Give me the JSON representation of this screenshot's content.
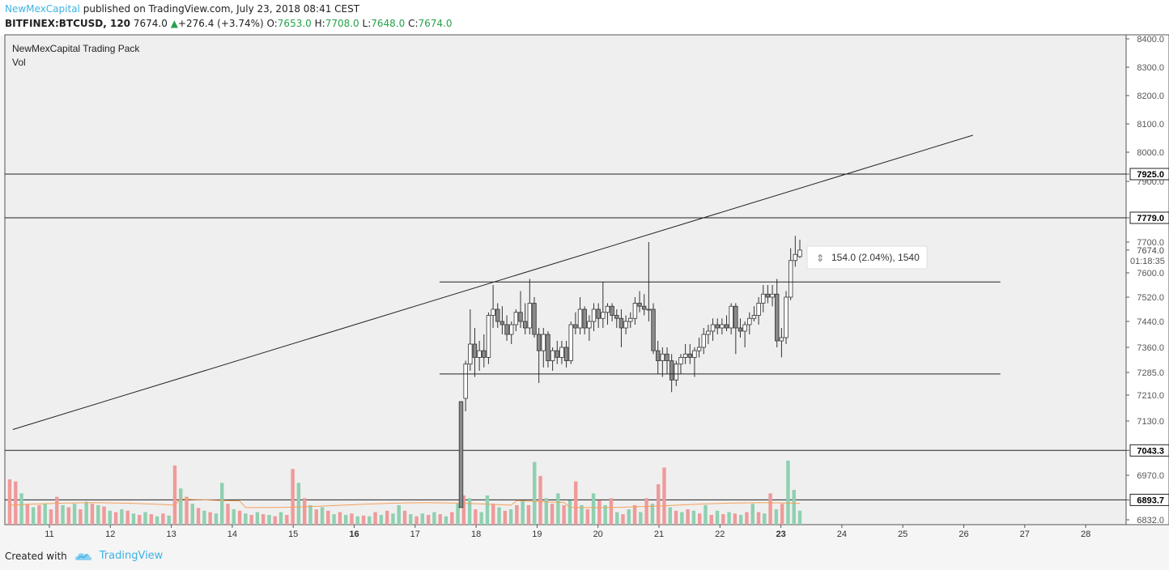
{
  "header": {
    "author": "NewMexCapital",
    "published_text": "published on TradingView.com, July 23, 2018 08:41 CEST",
    "symbol": "BITFINEX:BTCUSD, 120",
    "last_price": "7674.0",
    "change_arrow": "▲",
    "change": "+276.4 (+3.74%)",
    "open_label": "O:",
    "open_value": "7653.0",
    "high_label": "H:",
    "high_value": "7708.0",
    "low_label": "L:",
    "low_value": "7648.0",
    "close_label": "C:",
    "close_value": "7674.0"
  },
  "legend": {
    "indicator": "NewMexCapital Trading Pack",
    "volume": "Vol"
  },
  "measure_label": "154.0 (2.04%), 1540",
  "footer": {
    "created_with": "Created with",
    "brand": "TradingView"
  },
  "chart_data": {
    "type": "candlestick",
    "price_ticks": [
      6832.0,
      6893.7,
      6970.0,
      7043.3,
      7130.0,
      7210.0,
      7285.0,
      7360.0,
      7440.0,
      7520.0,
      7600.0,
      7674.0,
      7700.0,
      7779.0,
      7900.0,
      7925.0,
      8000.0,
      8100.0,
      8200.0,
      8300.0,
      8400.0
    ],
    "price_tick_labels": [
      "6832.0",
      "6893.7",
      "6970.0",
      "7043.3",
      "7130.0",
      "7210.0",
      "7285.0",
      "7360.0",
      "7440.0",
      "7520.0",
      "7600.0",
      "7674.0",
      "7700.0",
      "7779.0",
      "7900.0",
      "7925.0",
      "8000.0",
      "8100.0",
      "8200.0",
      "8300.0",
      "8400.0"
    ],
    "highlighted_levels": [
      7925.0,
      7779.0,
      7043.3,
      6893.7
    ],
    "current_price_label": "7674.0",
    "countdown_label": "01:18:35",
    "x_ticks": [
      "11",
      "12",
      "13",
      "14",
      "15",
      "16",
      "17",
      "18",
      "19",
      "20",
      "21",
      "22",
      "23",
      "24",
      "25",
      "26",
      "27",
      "28"
    ],
    "bold_x_ticks": [
      "16",
      "23"
    ],
    "horizontal_lines": [
      7925.0,
      7779.0,
      7043.3,
      6893.7
    ],
    "channel": {
      "upper": 7570,
      "lower": 7280,
      "from_day": 17.4,
      "to_day": 26.6
    },
    "trendline": {
      "start": {
        "day": 10.4,
        "price": 7105
      },
      "end": {
        "day": 26.15,
        "price": 8060
      }
    },
    "candles": [
      {
        "o": 7190,
        "h": 7190,
        "l": 6870,
        "c": 6870
      },
      {
        "o": 7200,
        "h": 7320,
        "l": 7160,
        "c": 7310
      },
      {
        "o": 7310,
        "h": 7480,
        "l": 7290,
        "c": 7370
      },
      {
        "o": 7370,
        "h": 7420,
        "l": 7270,
        "c": 7330
      },
      {
        "o": 7330,
        "h": 7380,
        "l": 7290,
        "c": 7350
      },
      {
        "o": 7350,
        "h": 7400,
        "l": 7300,
        "c": 7330
      },
      {
        "o": 7330,
        "h": 7470,
        "l": 7310,
        "c": 7460
      },
      {
        "o": 7460,
        "h": 7560,
        "l": 7420,
        "c": 7480
      },
      {
        "o": 7480,
        "h": 7500,
        "l": 7420,
        "c": 7440
      },
      {
        "o": 7440,
        "h": 7490,
        "l": 7400,
        "c": 7430
      },
      {
        "o": 7430,
        "h": 7460,
        "l": 7380,
        "c": 7400
      },
      {
        "o": 7400,
        "h": 7440,
        "l": 7370,
        "c": 7430
      },
      {
        "o": 7430,
        "h": 7480,
        "l": 7410,
        "c": 7470
      },
      {
        "o": 7470,
        "h": 7540,
        "l": 7420,
        "c": 7440
      },
      {
        "o": 7440,
        "h": 7500,
        "l": 7400,
        "c": 7420
      },
      {
        "o": 7420,
        "h": 7580,
        "l": 7400,
        "c": 7500
      },
      {
        "o": 7500,
        "h": 7520,
        "l": 7390,
        "c": 7400
      },
      {
        "o": 7400,
        "h": 7420,
        "l": 7250,
        "c": 7350
      },
      {
        "o": 7350,
        "h": 7420,
        "l": 7300,
        "c": 7400
      },
      {
        "o": 7400,
        "h": 7410,
        "l": 7300,
        "c": 7320
      },
      {
        "o": 7320,
        "h": 7360,
        "l": 7290,
        "c": 7350
      },
      {
        "o": 7350,
        "h": 7380,
        "l": 7310,
        "c": 7330
      },
      {
        "o": 7330,
        "h": 7380,
        "l": 7310,
        "c": 7360
      },
      {
        "o": 7360,
        "h": 7380,
        "l": 7300,
        "c": 7320
      },
      {
        "o": 7320,
        "h": 7440,
        "l": 7310,
        "c": 7430
      },
      {
        "o": 7430,
        "h": 7470,
        "l": 7400,
        "c": 7420
      },
      {
        "o": 7420,
        "h": 7520,
        "l": 7400,
        "c": 7480
      },
      {
        "o": 7480,
        "h": 7490,
        "l": 7400,
        "c": 7420
      },
      {
        "o": 7420,
        "h": 7460,
        "l": 7380,
        "c": 7440
      },
      {
        "o": 7440,
        "h": 7500,
        "l": 7410,
        "c": 7480
      },
      {
        "o": 7480,
        "h": 7500,
        "l": 7420,
        "c": 7450
      },
      {
        "o": 7450,
        "h": 7570,
        "l": 7420,
        "c": 7470
      },
      {
        "o": 7470,
        "h": 7500,
        "l": 7430,
        "c": 7490
      },
      {
        "o": 7490,
        "h": 7500,
        "l": 7440,
        "c": 7460
      },
      {
        "o": 7460,
        "h": 7480,
        "l": 7420,
        "c": 7450
      },
      {
        "o": 7450,
        "h": 7480,
        "l": 7360,
        "c": 7420
      },
      {
        "o": 7420,
        "h": 7460,
        "l": 7400,
        "c": 7440
      },
      {
        "o": 7440,
        "h": 7470,
        "l": 7420,
        "c": 7450
      },
      {
        "o": 7450,
        "h": 7520,
        "l": 7430,
        "c": 7500
      },
      {
        "o": 7500,
        "h": 7540,
        "l": 7470,
        "c": 7490
      },
      {
        "o": 7490,
        "h": 7530,
        "l": 7460,
        "c": 7480
      },
      {
        "o": 7480,
        "h": 7700,
        "l": 7440,
        "c": 7480
      },
      {
        "o": 7480,
        "h": 7500,
        "l": 7340,
        "c": 7350
      },
      {
        "o": 7350,
        "h": 7380,
        "l": 7280,
        "c": 7320
      },
      {
        "o": 7320,
        "h": 7360,
        "l": 7270,
        "c": 7340
      },
      {
        "o": 7340,
        "h": 7360,
        "l": 7280,
        "c": 7320
      },
      {
        "o": 7320,
        "h": 7340,
        "l": 7220,
        "c": 7260
      },
      {
        "o": 7260,
        "h": 7320,
        "l": 7240,
        "c": 7310
      },
      {
        "o": 7310,
        "h": 7340,
        "l": 7280,
        "c": 7330
      },
      {
        "o": 7330,
        "h": 7370,
        "l": 7310,
        "c": 7340
      },
      {
        "o": 7340,
        "h": 7370,
        "l": 7310,
        "c": 7330
      },
      {
        "o": 7330,
        "h": 7360,
        "l": 7270,
        "c": 7350
      },
      {
        "o": 7350,
        "h": 7390,
        "l": 7330,
        "c": 7360
      },
      {
        "o": 7360,
        "h": 7420,
        "l": 7340,
        "c": 7400
      },
      {
        "o": 7400,
        "h": 7430,
        "l": 7370,
        "c": 7410
      },
      {
        "o": 7410,
        "h": 7450,
        "l": 7380,
        "c": 7430
      },
      {
        "o": 7430,
        "h": 7450,
        "l": 7400,
        "c": 7420
      },
      {
        "o": 7420,
        "h": 7450,
        "l": 7400,
        "c": 7430
      },
      {
        "o": 7430,
        "h": 7460,
        "l": 7410,
        "c": 7420
      },
      {
        "o": 7420,
        "h": 7500,
        "l": 7400,
        "c": 7490
      },
      {
        "o": 7490,
        "h": 7500,
        "l": 7340,
        "c": 7420
      },
      {
        "o": 7420,
        "h": 7450,
        "l": 7390,
        "c": 7410
      },
      {
        "o": 7410,
        "h": 7440,
        "l": 7360,
        "c": 7430
      },
      {
        "o": 7430,
        "h": 7470,
        "l": 7400,
        "c": 7450
      },
      {
        "o": 7450,
        "h": 7490,
        "l": 7440,
        "c": 7460
      },
      {
        "o": 7460,
        "h": 7520,
        "l": 7430,
        "c": 7500
      },
      {
        "o": 7500,
        "h": 7560,
        "l": 7470,
        "c": 7530
      },
      {
        "o": 7530,
        "h": 7560,
        "l": 7500,
        "c": 7520
      },
      {
        "o": 7520,
        "h": 7560,
        "l": 7490,
        "c": 7530
      },
      {
        "o": 7530,
        "h": 7580,
        "l": 7360,
        "c": 7380
      },
      {
        "o": 7380,
        "h": 7420,
        "l": 7330,
        "c": 7390
      },
      {
        "o": 7390,
        "h": 7540,
        "l": 7370,
        "c": 7520
      },
      {
        "o": 7520,
        "h": 7680,
        "l": 7510,
        "c": 7640
      },
      {
        "o": 7640,
        "h": 7720,
        "l": 7620,
        "c": 7660
      },
      {
        "o": 7653,
        "h": 7708,
        "l": 7648,
        "c": 7674
      }
    ],
    "volume": [
      {
        "v": 0.65,
        "up": false
      },
      {
        "v": 0.62,
        "up": false
      },
      {
        "v": 0.45,
        "up": true
      },
      {
        "v": 0.3,
        "up": false
      },
      {
        "v": 0.25,
        "up": true
      },
      {
        "v": 0.28,
        "up": false
      },
      {
        "v": 0.3,
        "up": true
      },
      {
        "v": 0.22,
        "up": false
      },
      {
        "v": 0.4,
        "up": false
      },
      {
        "v": 0.28,
        "up": true
      },
      {
        "v": 0.25,
        "up": false
      },
      {
        "v": 0.3,
        "up": true
      },
      {
        "v": 0.22,
        "up": false
      },
      {
        "v": 0.33,
        "up": true
      },
      {
        "v": 0.3,
        "up": false
      },
      {
        "v": 0.28,
        "up": true
      },
      {
        "v": 0.26,
        "up": false
      },
      {
        "v": 0.2,
        "up": true
      },
      {
        "v": 0.18,
        "up": false
      },
      {
        "v": 0.22,
        "up": true
      },
      {
        "v": 0.2,
        "up": false
      },
      {
        "v": 0.16,
        "up": true
      },
      {
        "v": 0.14,
        "up": false
      },
      {
        "v": 0.18,
        "up": true
      },
      {
        "v": 0.15,
        "up": false
      },
      {
        "v": 0.12,
        "up": true
      },
      {
        "v": 0.16,
        "up": false
      },
      {
        "v": 0.13,
        "up": true
      },
      {
        "v": 0.85,
        "up": false
      },
      {
        "v": 0.52,
        "up": true
      },
      {
        "v": 0.4,
        "up": false
      },
      {
        "v": 0.3,
        "up": true
      },
      {
        "v": 0.24,
        "up": false
      },
      {
        "v": 0.2,
        "up": true
      },
      {
        "v": 0.18,
        "up": false
      },
      {
        "v": 0.16,
        "up": true
      },
      {
        "v": 0.6,
        "up": true
      },
      {
        "v": 0.3,
        "up": false
      },
      {
        "v": 0.22,
        "up": true
      },
      {
        "v": 0.2,
        "up": false
      },
      {
        "v": 0.16,
        "up": true
      },
      {
        "v": 0.14,
        "up": false
      },
      {
        "v": 0.18,
        "up": true
      },
      {
        "v": 0.15,
        "up": false
      },
      {
        "v": 0.14,
        "up": true
      },
      {
        "v": 0.12,
        "up": false
      },
      {
        "v": 0.18,
        "up": true
      },
      {
        "v": 0.14,
        "up": false
      },
      {
        "v": 0.8,
        "up": false
      },
      {
        "v": 0.6,
        "up": true
      },
      {
        "v": 0.38,
        "up": false
      },
      {
        "v": 0.28,
        "up": true
      },
      {
        "v": 0.22,
        "up": false
      },
      {
        "v": 0.25,
        "up": true
      },
      {
        "v": 0.2,
        "up": false
      },
      {
        "v": 0.15,
        "up": true
      },
      {
        "v": 0.18,
        "up": false
      },
      {
        "v": 0.14,
        "up": true
      },
      {
        "v": 0.16,
        "up": false
      },
      {
        "v": 0.12,
        "up": true
      },
      {
        "v": 0.13,
        "up": false
      },
      {
        "v": 0.12,
        "up": true
      },
      {
        "v": 0.18,
        "up": false
      },
      {
        "v": 0.14,
        "up": true
      },
      {
        "v": 0.2,
        "up": false
      },
      {
        "v": 0.16,
        "up": true
      },
      {
        "v": 0.28,
        "up": true
      },
      {
        "v": 0.2,
        "up": false
      },
      {
        "v": 0.15,
        "up": true
      },
      {
        "v": 0.12,
        "up": false
      },
      {
        "v": 0.16,
        "up": true
      },
      {
        "v": 0.14,
        "up": false
      },
      {
        "v": 0.18,
        "up": true
      },
      {
        "v": 0.15,
        "up": false
      },
      {
        "v": 0.12,
        "up": true
      },
      {
        "v": 0.18,
        "up": false
      },
      {
        "v": 0.3,
        "up": true
      },
      {
        "v": 0.42,
        "up": false
      },
      {
        "v": 0.38,
        "up": true
      },
      {
        "v": 0.22,
        "up": false
      },
      {
        "v": 0.18,
        "up": true
      },
      {
        "v": 0.42,
        "up": true
      },
      {
        "v": 0.3,
        "up": false
      },
      {
        "v": 0.25,
        "up": true
      },
      {
        "v": 0.2,
        "up": false
      },
      {
        "v": 0.22,
        "up": true
      },
      {
        "v": 0.28,
        "up": false
      },
      {
        "v": 0.35,
        "up": true
      },
      {
        "v": 0.28,
        "up": false
      },
      {
        "v": 0.9,
        "up": true
      },
      {
        "v": 0.7,
        "up": false
      },
      {
        "v": 0.38,
        "up": true
      },
      {
        "v": 0.3,
        "up": false
      },
      {
        "v": 0.45,
        "up": true
      },
      {
        "v": 0.28,
        "up": false
      },
      {
        "v": 0.35,
        "up": true
      },
      {
        "v": 0.62,
        "up": false
      },
      {
        "v": 0.28,
        "up": true
      },
      {
        "v": 0.22,
        "up": false
      },
      {
        "v": 0.45,
        "up": true
      },
      {
        "v": 0.35,
        "up": false
      },
      {
        "v": 0.28,
        "up": true
      },
      {
        "v": 0.38,
        "up": false
      },
      {
        "v": 0.18,
        "up": true
      },
      {
        "v": 0.15,
        "up": false
      },
      {
        "v": 0.22,
        "up": true
      },
      {
        "v": 0.28,
        "up": false
      },
      {
        "v": 0.18,
        "up": true
      },
      {
        "v": 0.38,
        "up": false
      },
      {
        "v": 0.3,
        "up": true
      },
      {
        "v": 0.58,
        "up": false
      },
      {
        "v": 0.82,
        "up": false
      },
      {
        "v": 0.25,
        "up": true
      },
      {
        "v": 0.2,
        "up": false
      },
      {
        "v": 0.18,
        "up": true
      },
      {
        "v": 0.22,
        "up": false
      },
      {
        "v": 0.2,
        "up": true
      },
      {
        "v": 0.16,
        "up": false
      },
      {
        "v": 0.28,
        "up": true
      },
      {
        "v": 0.14,
        "up": false
      },
      {
        "v": 0.2,
        "up": true
      },
      {
        "v": 0.15,
        "up": false
      },
      {
        "v": 0.18,
        "up": true
      },
      {
        "v": 0.16,
        "up": false
      },
      {
        "v": 0.14,
        "up": true
      },
      {
        "v": 0.18,
        "up": false
      },
      {
        "v": 0.3,
        "up": true
      },
      {
        "v": 0.18,
        "up": false
      },
      {
        "v": 0.16,
        "up": true
      },
      {
        "v": 0.45,
        "up": false
      },
      {
        "v": 0.22,
        "up": true
      },
      {
        "v": 0.3,
        "up": false
      },
      {
        "v": 0.92,
        "up": true
      },
      {
        "v": 0.5,
        "up": true
      },
      {
        "v": 0.2,
        "up": true
      }
    ],
    "colors": {
      "background": "#efefef",
      "candle_up": "#ffffff",
      "candle_down": "#8a8a8a",
      "candle_outline": "#333333",
      "volume_up": "#8fd0b0",
      "volume_down": "#ef9a9a",
      "volume_ma": "#f5a05a",
      "lines": "#222222"
    }
  }
}
